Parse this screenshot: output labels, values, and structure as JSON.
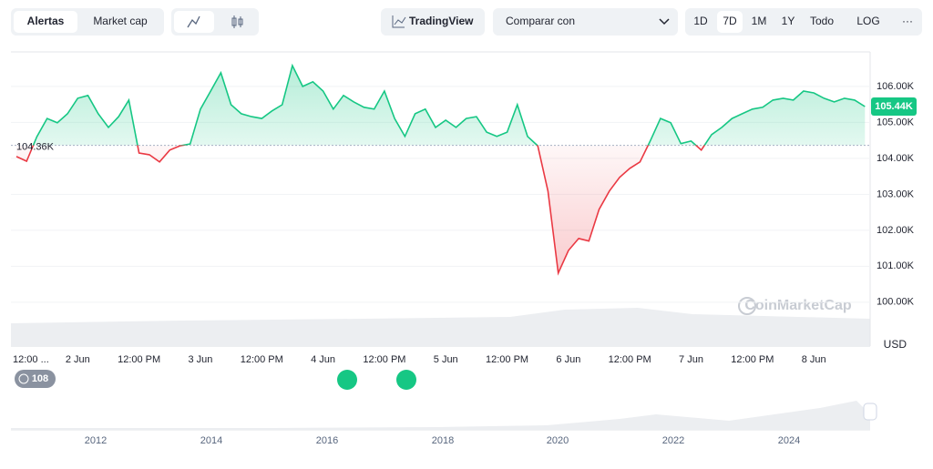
{
  "ui": {
    "tabs": [
      "Alertas",
      "Market cap"
    ],
    "tradingview": "TradingView",
    "compare": "Comparar con",
    "ranges": [
      "1D",
      "7D",
      "1M",
      "1Y",
      "Todo",
      "LOG",
      "···"
    ],
    "currency": "USD",
    "events_badge": "108",
    "watermark": "CoinMarketCap"
  },
  "chart_data": {
    "type": "line",
    "categories": [
      "12:00 ...",
      null,
      null,
      null,
      null,
      null,
      "2 Jun",
      null,
      null,
      null,
      null,
      null,
      "12:00 PM",
      null,
      null,
      null,
      null,
      null,
      "3 Jun",
      null,
      null,
      null,
      null,
      null,
      "12:00 PM",
      null,
      null,
      null,
      null,
      null,
      "4 Jun",
      null,
      null,
      null,
      null,
      null,
      "12:00 PM",
      null,
      null,
      null,
      null,
      null,
      "5 Jun",
      null,
      null,
      null,
      null,
      null,
      "12:00 PM",
      null,
      null,
      null,
      null,
      null,
      "6 Jun",
      null,
      null,
      null,
      null,
      null,
      "12:00 PM",
      null,
      null,
      null,
      null,
      null,
      "7 Jun",
      null,
      null,
      null,
      null,
      null,
      "12:00 PM",
      null,
      null,
      null,
      null,
      null,
      "8 Jun",
      null,
      null,
      null,
      null,
      null
    ],
    "values": [
      104050,
      103920,
      104600,
      105110,
      104990,
      105240,
      105670,
      105750,
      105240,
      104860,
      105160,
      105620,
      104150,
      104100,
      103900,
      104230,
      104350,
      104400,
      105370,
      105870,
      106380,
      105490,
      105240,
      105160,
      105110,
      105320,
      105490,
      106580,
      106000,
      106130,
      105870,
      105370,
      105750,
      105570,
      105420,
      105370,
      105870,
      105110,
      104610,
      105240,
      105370,
      104860,
      105060,
      104860,
      105110,
      105160,
      104730,
      104610,
      104730,
      105490,
      104610,
      104350,
      103090,
      100810,
      101440,
      101770,
      101700,
      102580,
      103090,
      103470,
      103720,
      103900,
      104480,
      105110,
      104990,
      104410,
      104480,
      104230,
      104660,
      104860,
      105110,
      105240,
      105370,
      105420,
      105620,
      105670,
      105620,
      105870,
      105820,
      105670,
      105570,
      105670,
      105620,
      105440
    ],
    "ylim": [
      98780,
      106960
    ],
    "yticks": [
      {
        "value": 100000,
        "label": "100.00K"
      },
      {
        "value": 101000,
        "label": "101.00K"
      },
      {
        "value": 102000,
        "label": "102.00K"
      },
      {
        "value": 103000,
        "label": "103.00K"
      },
      {
        "value": 104000,
        "label": "104.00K"
      },
      {
        "value": 105000,
        "label": "105.00K"
      },
      {
        "value": 106000,
        "label": "106.00K"
      }
    ],
    "baseline": {
      "value": 104360,
      "label": "104.36K"
    },
    "current": {
      "value": 105440,
      "label": "105.44K"
    },
    "up_color": "#16c784",
    "down_color": "#ea3943",
    "grid": true,
    "navigator_years": [
      "2012",
      "2014",
      "2016",
      "2018",
      "2020",
      "2022",
      "2024"
    ]
  }
}
